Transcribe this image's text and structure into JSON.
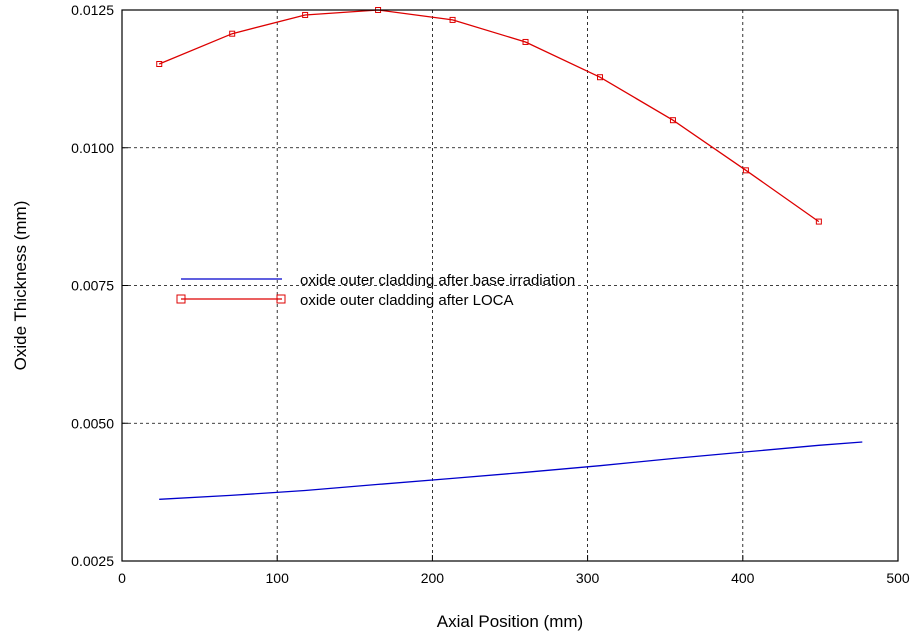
{
  "chart_data": {
    "type": "line",
    "title": "",
    "xlabel": "Axial Position (mm)",
    "ylabel": "Oxide Thickness  (mm)",
    "xlim": [
      0,
      500
    ],
    "ylim": [
      0.0025,
      0.0125
    ],
    "x_ticks": [
      0,
      100,
      200,
      300,
      400,
      500
    ],
    "x_tick_labels": [
      "0",
      "100",
      "200",
      "300",
      "400",
      "500"
    ],
    "y_ticks": [
      0.0025,
      0.005,
      0.0075,
      0.01,
      0.0125
    ],
    "y_tick_labels": [
      "0.0025",
      "0.0050",
      "0.0075",
      "0.0100",
      "0.0125"
    ],
    "grid": true,
    "grid_style": "dashed",
    "legend_position": "middle-left",
    "series": [
      {
        "name": "oxide outer cladding  after base irradiation",
        "color": "#0000cc",
        "marker": "none",
        "x": [
          24,
          70,
          118,
          165,
          213,
          260,
          308,
          355,
          402,
          449,
          477
        ],
        "y": [
          0.00362,
          0.00369,
          0.00378,
          0.00389,
          0.004,
          0.00411,
          0.00423,
          0.00436,
          0.00448,
          0.0046,
          0.00466
        ]
      },
      {
        "name": "oxide outer cladding after LOCA",
        "color": "#dd0000",
        "marker": "square",
        "x": [
          24,
          71,
          118,
          165,
          213,
          260,
          308,
          355,
          402,
          449
        ],
        "y": [
          0.01152,
          0.01207,
          0.01241,
          0.0125,
          0.01232,
          0.01192,
          0.01128,
          0.0105,
          0.00959,
          0.00866
        ]
      }
    ]
  }
}
